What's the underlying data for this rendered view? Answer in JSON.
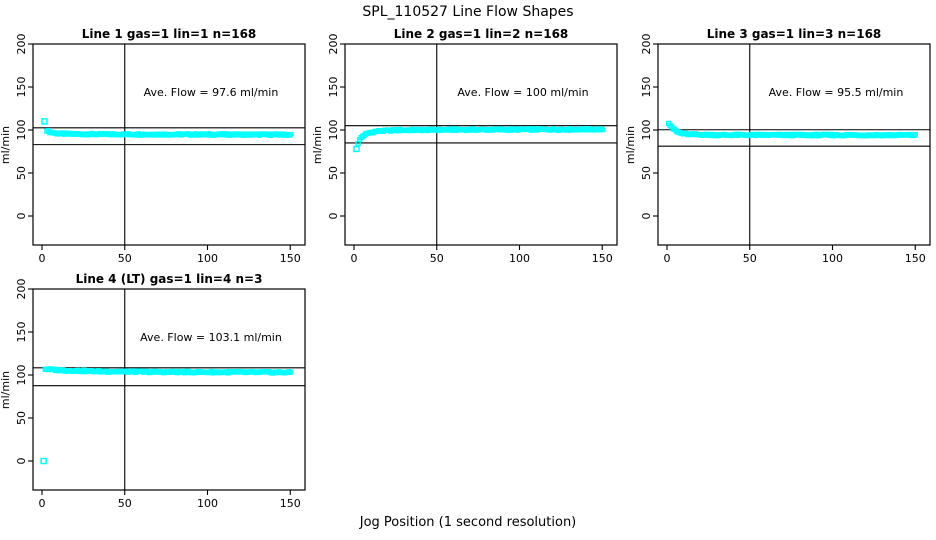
{
  "page": {
    "title": "SPL_110527  Line Flow Shapes",
    "xlabel": "Jog Position (1 second resolution)"
  },
  "chart_data": [
    {
      "type": "scatter",
      "title": "Line 1 gas=1 lin=1 n=168",
      "annotation": "Ave. Flow =  97.6  ml/min",
      "ave_flow": 97.6,
      "n": 168,
      "ylabel": "ml/min",
      "xticks": [
        0,
        50,
        100,
        150
      ],
      "yticks": [
        0,
        50,
        100,
        150,
        200
      ],
      "xlim": [
        -5,
        159
      ],
      "ylim": [
        -34,
        200
      ],
      "vline_x": 50,
      "ref_lines": [
        102.5,
        83.0
      ],
      "marker_color": "#00FFFF",
      "outliers": [
        [
          1.5,
          110
        ]
      ],
      "x_range": [
        3,
        150
      ],
      "profile": [
        [
          3,
          99.5
        ],
        [
          5,
          97.5
        ],
        [
          9,
          96.0
        ],
        [
          18,
          95.3
        ],
        [
          40,
          95.0
        ],
        [
          150,
          94.6
        ]
      ]
    },
    {
      "type": "scatter",
      "title": "Line 2 gas=1 lin=2 n=168",
      "annotation": "Ave. Flow =  100  ml/min",
      "ave_flow": 100,
      "n": 168,
      "ylabel": "ml/min",
      "xticks": [
        0,
        50,
        100,
        150
      ],
      "yticks": [
        0,
        50,
        100,
        150,
        200
      ],
      "xlim": [
        -5,
        159
      ],
      "ylim": [
        -34,
        200
      ],
      "vline_x": 50,
      "ref_lines": [
        105.0,
        85.0
      ],
      "marker_color": "#00FFFF",
      "outliers": [
        [
          1.5,
          78
        ]
      ],
      "x_range": [
        2.5,
        150
      ],
      "profile": [
        [
          2.5,
          85
        ],
        [
          4,
          90.5
        ],
        [
          6,
          94
        ],
        [
          9,
          96.5
        ],
        [
          14,
          98.5
        ],
        [
          25,
          99.8
        ],
        [
          60,
          100.3
        ],
        [
          150,
          100.8
        ]
      ]
    },
    {
      "type": "scatter",
      "title": "Line 3 gas=1 lin=3 n=168",
      "annotation": "Ave. Flow =  95.5  ml/min",
      "ave_flow": 95.5,
      "n": 168,
      "ylabel": "ml/min",
      "xticks": [
        0,
        50,
        100,
        150
      ],
      "yticks": [
        0,
        50,
        100,
        150,
        200
      ],
      "xlim": [
        -5,
        159
      ],
      "ylim": [
        -34,
        200
      ],
      "vline_x": 50,
      "ref_lines": [
        100.3,
        81.2
      ],
      "marker_color": "#00FFFF",
      "outliers": [],
      "x_range": [
        1,
        150
      ],
      "profile": [
        [
          1,
          108.5
        ],
        [
          2,
          106
        ],
        [
          4,
          101
        ],
        [
          6,
          98
        ],
        [
          9,
          96
        ],
        [
          14,
          94.8
        ],
        [
          30,
          94.2
        ],
        [
          150,
          94.0
        ]
      ]
    },
    {
      "type": "scatter",
      "title": "Line 4 (LT) gas=1 lin=4 n=3",
      "annotation": "Ave. Flow =  103.1  ml/min",
      "ave_flow": 103.1,
      "n": 3,
      "ylabel": "ml/min",
      "xticks": [
        0,
        50,
        100,
        150
      ],
      "yticks": [
        0,
        50,
        100,
        150,
        200
      ],
      "xlim": [
        -5,
        159
      ],
      "ylim": [
        -34,
        200
      ],
      "vline_x": 50,
      "ref_lines": [
        108.3,
        87.6
      ],
      "marker_color": "#00FFFF",
      "outliers": [
        [
          1,
          0
        ]
      ],
      "x_range": [
        2,
        150
      ],
      "profile": [
        [
          2,
          107
        ],
        [
          6,
          106.2
        ],
        [
          15,
          105.2
        ],
        [
          35,
          104.2
        ],
        [
          70,
          103.5
        ],
        [
          150,
          103.0
        ]
      ]
    }
  ]
}
